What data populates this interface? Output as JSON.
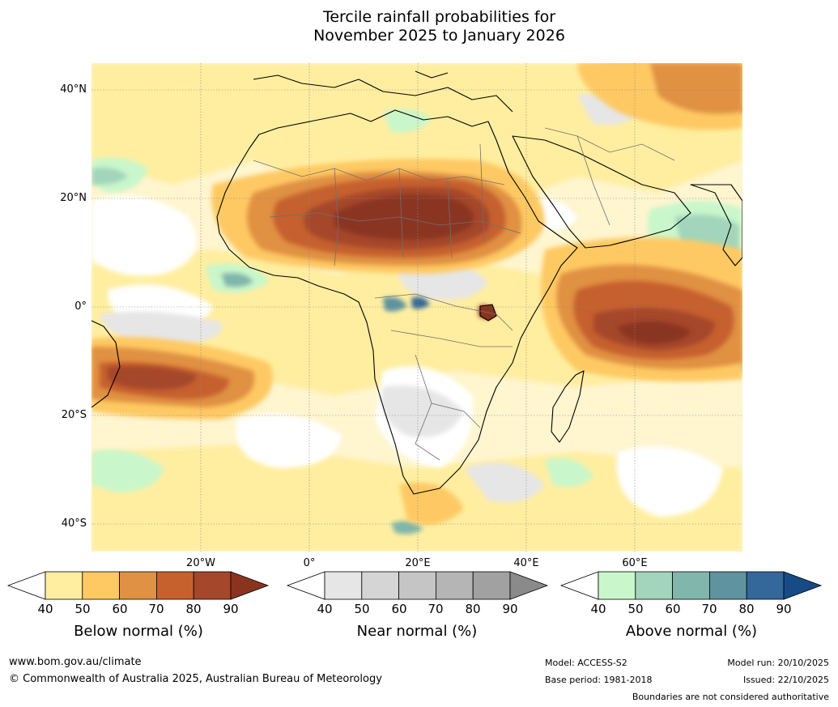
{
  "title": {
    "line1": "Tercile rainfall probabilities for",
    "line2": "November 2025 to January 2026"
  },
  "map": {
    "lat_labels": [
      "40°N",
      "20°N",
      "0°",
      "20°S",
      "40°S"
    ],
    "lon_labels": [
      "20°W",
      "0°",
      "20°E",
      "40°E",
      "60°E"
    ]
  },
  "colorbars": [
    {
      "name": "below",
      "label": "Below normal (%)",
      "ticks": [
        "40",
        "50",
        "60",
        "70",
        "80",
        "90"
      ],
      "colors": [
        "#ffffff",
        "#ffeea0",
        "#fec963",
        "#e09143",
        "#c6612e",
        "#a5472a",
        "#8a3420"
      ]
    },
    {
      "name": "near",
      "label": "Near normal (%)",
      "ticks": [
        "40",
        "50",
        "60",
        "70",
        "80",
        "90"
      ],
      "colors": [
        "#ffffff",
        "#e6e6e6",
        "#d5d5d5",
        "#c5c5c5",
        "#b5b5b5",
        "#a1a1a1",
        "#8a8a8a"
      ]
    },
    {
      "name": "above",
      "label": "Above normal (%)",
      "ticks": [
        "40",
        "50",
        "60",
        "70",
        "80",
        "90"
      ],
      "colors": [
        "#ffffff",
        "#c9f7cb",
        "#a2d5bb",
        "#81b6ac",
        "#5f93a0",
        "#34679a",
        "#174b85"
      ]
    }
  ],
  "footer": {
    "url": "www.bom.gov.au/climate",
    "copyright": "© Commonwealth of Australia 2025, Australian Bureau of Meteorology",
    "model": "Model: ACCESS-S2",
    "base_period": "Base period: 1981-2018",
    "model_run": "Model run: 20/10/2025",
    "issued": "Issued: 22/10/2025",
    "disclaimer": "Boundaries are not considered authoritative"
  }
}
